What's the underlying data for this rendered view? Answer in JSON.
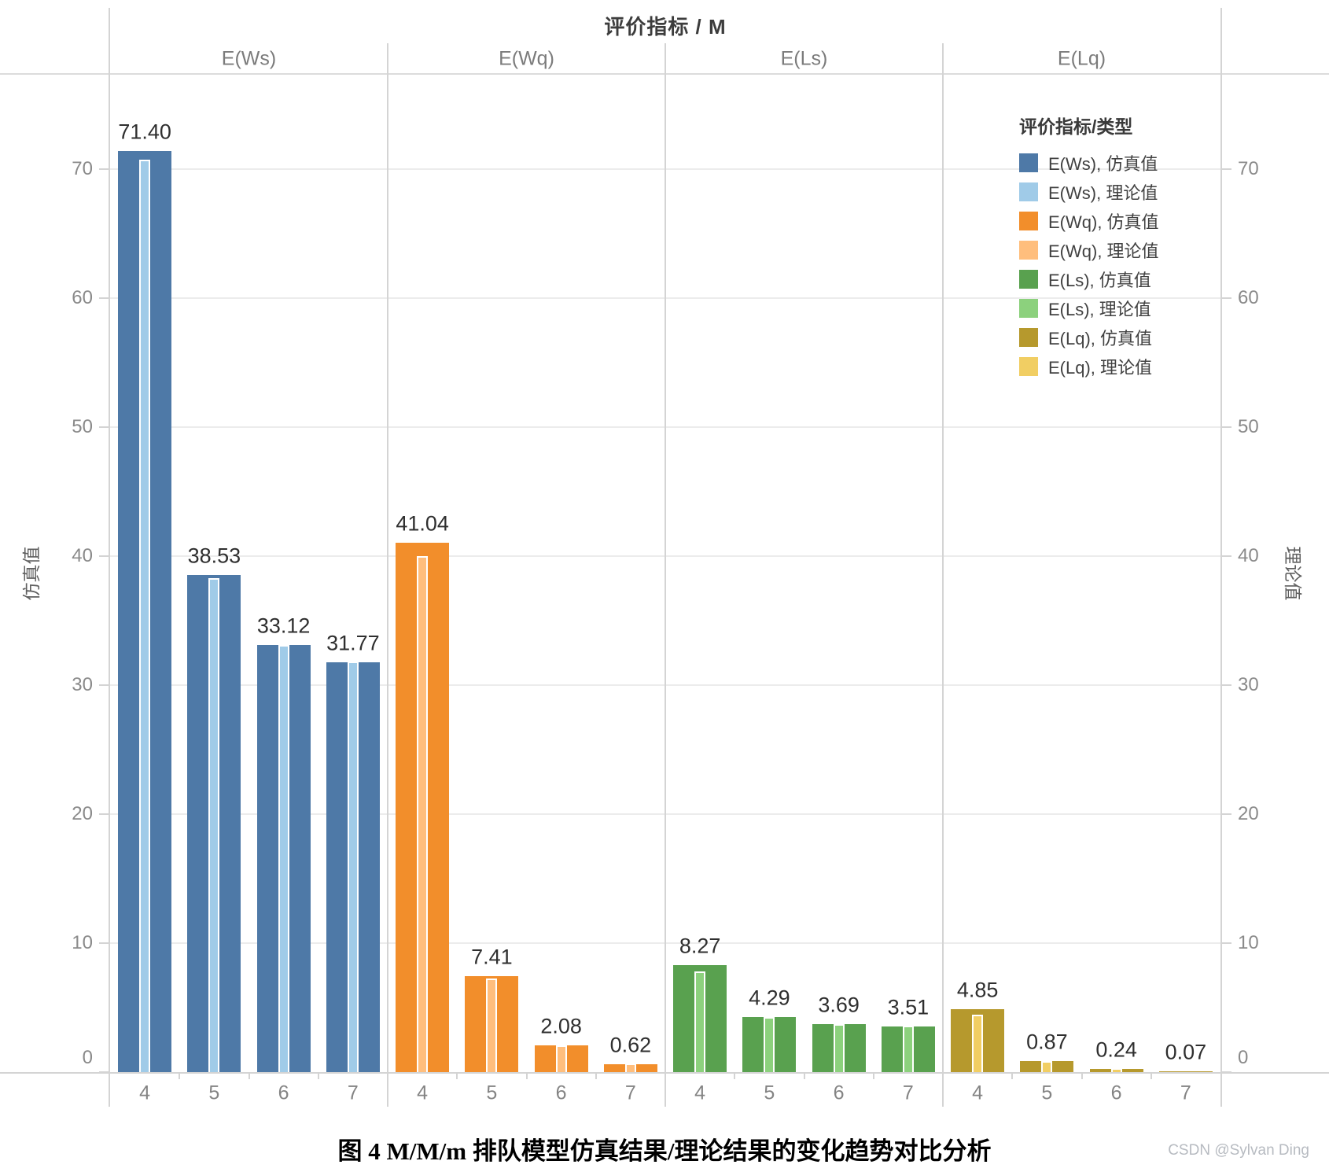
{
  "title": "评价指标 / M",
  "caption": "图 4 M/M/m 排队模型仿真结果/理论结果的变化趋势对比分析",
  "watermark": "CSDN @Sylvan Ding",
  "axes": {
    "left_title": "仿真值",
    "right_title": "理论值",
    "ticks": [
      0,
      10,
      20,
      30,
      40,
      50,
      60,
      70
    ]
  },
  "legend": {
    "title": "评价指标/类型",
    "items": [
      {
        "label": "E(Ws), 仿真值",
        "color": "#4e79a7"
      },
      {
        "label": "E(Ws), 理论值",
        "color": "#a0cbe8"
      },
      {
        "label": "E(Wq), 仿真值",
        "color": "#f28e2b"
      },
      {
        "label": "E(Wq), 理论值",
        "color": "#ffbe7d"
      },
      {
        "label": "E(Ls), 仿真值",
        "color": "#59a14f"
      },
      {
        "label": "E(Ls), 理论值",
        "color": "#8cd17d"
      },
      {
        "label": "E(Lq), 仿真值",
        "color": "#b6992d"
      },
      {
        "label": "E(Lq), 理论值",
        "color": "#f1ce63"
      }
    ]
  },
  "chart_data": {
    "type": "bar",
    "title": "评价指标 / M",
    "facet_header": "评价指标 / M",
    "x_categories": [
      "4",
      "5",
      "6",
      "7"
    ],
    "ylabel_left": "仿真值",
    "ylabel_right": "理论值",
    "ylim": [
      0,
      77.3
    ],
    "grid": true,
    "legend_position": "inside upper right",
    "note": "Wide bars = 仿真值 (labeled). Narrow white-outlined inner bars = 理论值 (unlabeled in image; values estimated from pixel heights).",
    "panels": [
      {
        "metric": "E(Ws)",
        "categories": [
          "4",
          "5",
          "6",
          "7"
        ],
        "sim": {
          "name": "仿真值",
          "color": "#4e79a7",
          "values": [
            71.4,
            38.53,
            33.12,
            31.77
          ],
          "labels": [
            "71.40",
            "38.53",
            "33.12",
            "31.77"
          ]
        },
        "theory": {
          "name": "理论值",
          "color": "#a0cbe8",
          "estimated": true,
          "values": [
            70.6,
            38.2,
            33.0,
            31.7
          ]
        }
      },
      {
        "metric": "E(Wq)",
        "categories": [
          "4",
          "5",
          "6",
          "7"
        ],
        "sim": {
          "name": "仿真值",
          "color": "#f28e2b",
          "values": [
            41.04,
            7.41,
            2.08,
            0.62
          ],
          "labels": [
            "41.04",
            "7.41",
            "2.08",
            "0.62"
          ]
        },
        "theory": {
          "name": "理论值",
          "color": "#ffbe7d",
          "estimated": true,
          "values": [
            39.9,
            7.15,
            1.95,
            0.55
          ]
        }
      },
      {
        "metric": "E(Ls)",
        "categories": [
          "4",
          "5",
          "6",
          "7"
        ],
        "sim": {
          "name": "仿真值",
          "color": "#59a14f",
          "values": [
            8.27,
            4.29,
            3.69,
            3.51
          ],
          "labels": [
            "8.27",
            "4.29",
            "3.69",
            "3.51"
          ]
        },
        "theory": {
          "name": "理论值",
          "color": "#8cd17d",
          "estimated": true,
          "values": [
            7.7,
            4.15,
            3.6,
            3.45
          ]
        }
      },
      {
        "metric": "E(Lq)",
        "categories": [
          "4",
          "5",
          "6",
          "7"
        ],
        "sim": {
          "name": "仿真值",
          "color": "#b6992d",
          "values": [
            4.85,
            0.87,
            0.24,
            0.07
          ],
          "labels": [
            "4.85",
            "0.87",
            "0.24",
            "0.07"
          ]
        },
        "theory": {
          "name": "理论值",
          "color": "#f1ce63",
          "estimated": true,
          "values": [
            4.35,
            0.75,
            0.2,
            0.05
          ]
        }
      }
    ]
  }
}
